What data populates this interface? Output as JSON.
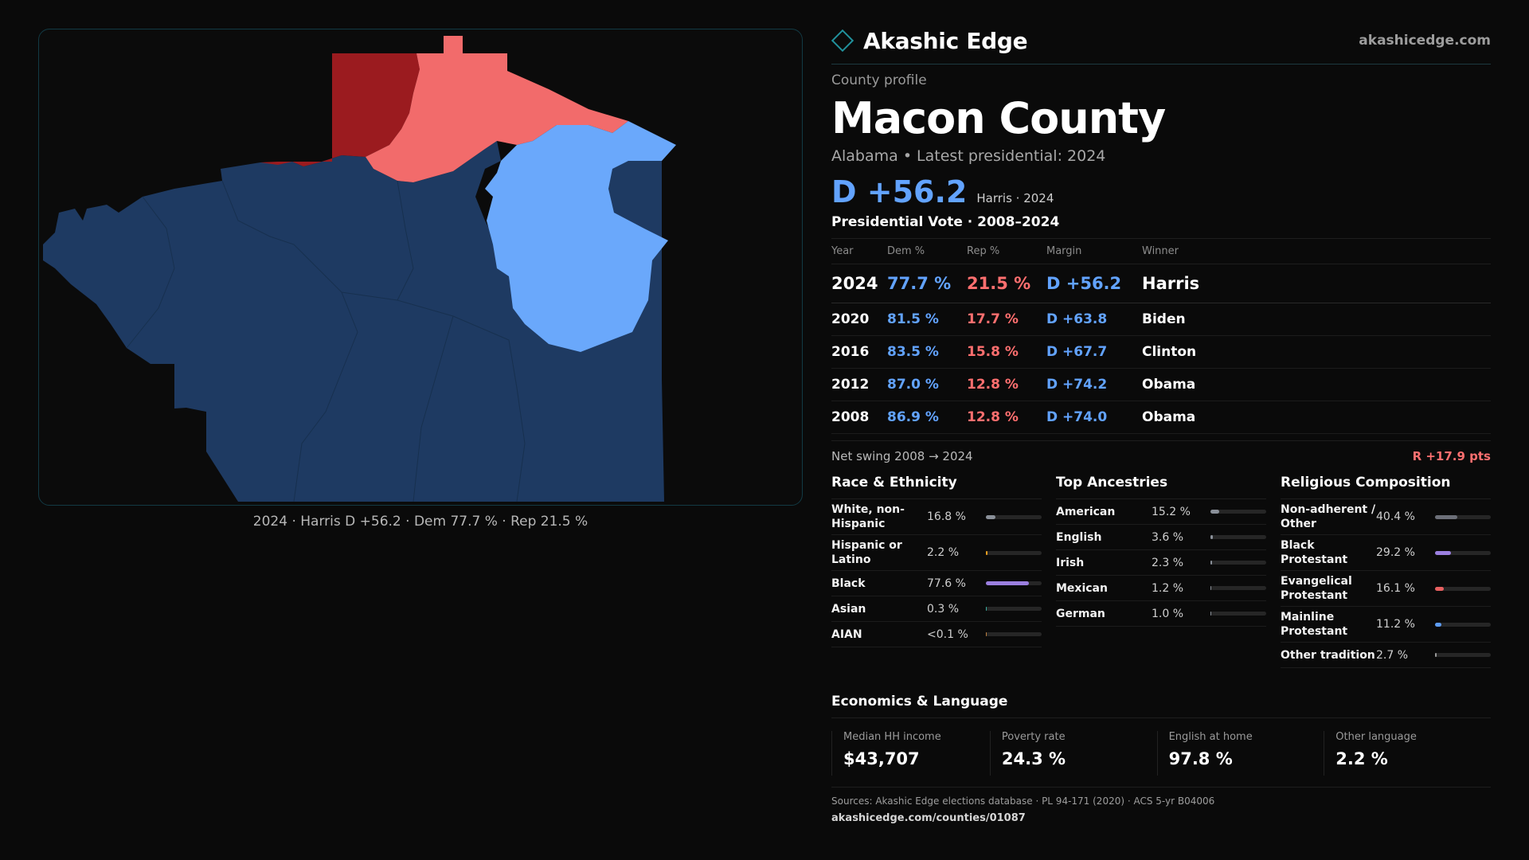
{
  "brand": {
    "name": "Akashic Edge",
    "url": "akashicedge.com"
  },
  "header": {
    "eyebrow": "County profile",
    "county": "Macon County",
    "subtitle": "Alabama • Latest presidential: 2024",
    "margin": "D +56.2",
    "margin_sub": "Harris · 2024"
  },
  "map": {
    "caption": "2024 · Harris D +56.2 · Dem 77.7 % · Rep 21.5 %",
    "colors": {
      "dem_strong": "#1e3a62",
      "dem_light": "#6aa8fb",
      "rep_light": "#f26b6b",
      "rep_strong": "#9b1b1f"
    }
  },
  "votes": {
    "title": "Presidential Vote · 2008–2024",
    "headers": [
      "Year",
      "Dem %",
      "Rep %",
      "Margin",
      "Winner"
    ],
    "rows": [
      {
        "year": "2024",
        "dem": "77.7 %",
        "rep": "21.5 %",
        "margin": "D +56.2",
        "winner": "Harris"
      },
      {
        "year": "2020",
        "dem": "81.5 %",
        "rep": "17.7 %",
        "margin": "D +63.8",
        "winner": "Biden"
      },
      {
        "year": "2016",
        "dem": "83.5 %",
        "rep": "15.8 %",
        "margin": "D +67.7",
        "winner": "Clinton"
      },
      {
        "year": "2012",
        "dem": "87.0 %",
        "rep": "12.8 %",
        "margin": "D +74.2",
        "winner": "Obama"
      },
      {
        "year": "2008",
        "dem": "86.9 %",
        "rep": "12.8 %",
        "margin": "D +74.0",
        "winner": "Obama"
      }
    ],
    "swing_label": "Net swing 2008 → 2024",
    "swing_value": "R +17.9 pts"
  },
  "race": {
    "title": "Race & Ethnicity",
    "items": [
      {
        "label": "White, non-Hispanic",
        "value": "16.8 %",
        "pct": 16.8,
        "color": "#8a9099"
      },
      {
        "label": "Hispanic or Latino",
        "value": "2.2 %",
        "pct": 2.2,
        "color": "#f0a020"
      },
      {
        "label": "Black",
        "value": "77.6 %",
        "pct": 77.6,
        "color": "#9b7fe0"
      },
      {
        "label": "Asian",
        "value": "0.3 %",
        "pct": 0.3,
        "color": "#38b0a0"
      },
      {
        "label": "AIAN",
        "value": "<0.1 %",
        "pct": 0.05,
        "color": "#c08040"
      }
    ]
  },
  "ancestry": {
    "title": "Top Ancestries",
    "items": [
      {
        "label": "American",
        "value": "15.2 %",
        "pct": 15.2,
        "color": "#8a9099"
      },
      {
        "label": "English",
        "value": "3.6 %",
        "pct": 3.6,
        "color": "#8a9099"
      },
      {
        "label": "Irish",
        "value": "2.3 %",
        "pct": 2.3,
        "color": "#8a9099"
      },
      {
        "label": "Mexican",
        "value": "1.2 %",
        "pct": 1.2,
        "color": "#8a9099"
      },
      {
        "label": "German",
        "value": "1.0 %",
        "pct": 1.0,
        "color": "#8a9099"
      }
    ]
  },
  "religion": {
    "title": "Religious Composition",
    "items": [
      {
        "label": "Non-adherent / Other",
        "value": "40.4 %",
        "pct": 40.4,
        "color": "#6c6f78"
      },
      {
        "label": "Black Protestant",
        "value": "29.2 %",
        "pct": 29.2,
        "color": "#9b7fe0"
      },
      {
        "label": "Evangelical Protestant",
        "value": "16.1 %",
        "pct": 16.1,
        "color": "#e86060"
      },
      {
        "label": "Mainline Protestant",
        "value": "11.2 %",
        "pct": 11.2,
        "color": "#5d9cf5"
      },
      {
        "label": "Other tradition",
        "value": "2.7 %",
        "pct": 2.7,
        "color": "#9a9a9a"
      }
    ]
  },
  "economics": {
    "title": "Economics & Language",
    "cells": [
      {
        "label": "Median HH income",
        "value": "$43,707"
      },
      {
        "label": "Poverty rate",
        "value": "24.3 %"
      },
      {
        "label": "English at home",
        "value": "97.8 %"
      },
      {
        "label": "Other language",
        "value": "2.2 %"
      }
    ]
  },
  "sources": {
    "text": "Sources: Akashic Edge elections database · PL 94-171 (2020) · ACS 5-yr B04006",
    "url": "akashicedge.com/counties/01087"
  }
}
